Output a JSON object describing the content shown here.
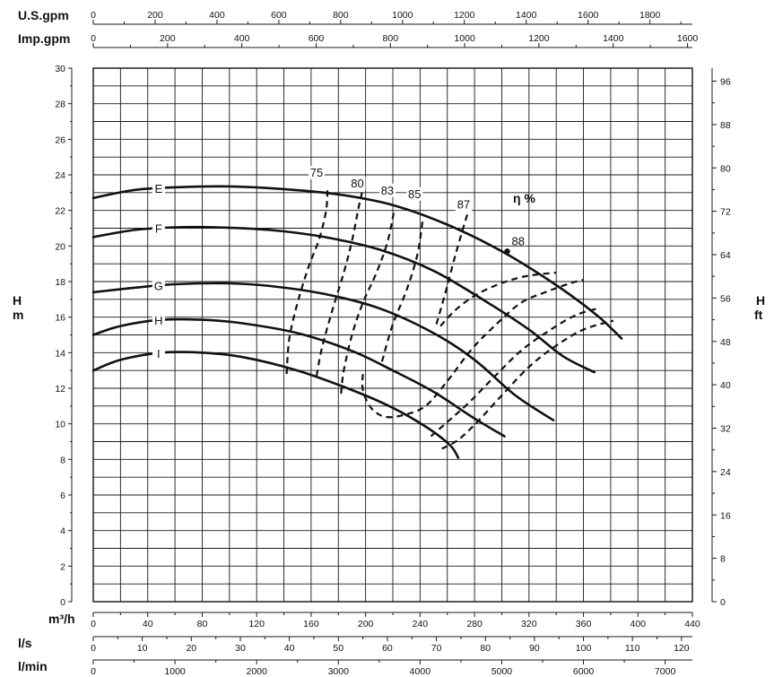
{
  "chart_data": {
    "type": "line",
    "title": "",
    "x_axes": [
      {
        "unit": "m³/h",
        "position": "bottom",
        "ticks": [
          "0",
          "40",
          "80",
          "120",
          "160",
          "200",
          "240",
          "280",
          "320",
          "360",
          "400",
          "440"
        ]
      },
      {
        "unit": "l/s",
        "position": "bottom",
        "ticks": [
          "0",
          "10",
          "20",
          "30",
          "40",
          "50",
          "60",
          "70",
          "80",
          "90",
          "100",
          "110",
          "120"
        ]
      },
      {
        "unit": "l/min",
        "position": "bottom",
        "ticks": [
          "0",
          "1000",
          "2000",
          "3000",
          "4000",
          "5000",
          "6000",
          "7000"
        ]
      },
      {
        "unit": "U.S.gpm",
        "position": "top",
        "ticks": [
          "0",
          "200",
          "400",
          "600",
          "800",
          "1000",
          "1200",
          "1400",
          "1600",
          "1800"
        ]
      },
      {
        "unit": "Imp.gpm",
        "position": "top",
        "ticks": [
          "0",
          "200",
          "400",
          "600",
          "800",
          "1000",
          "1200",
          "1400",
          "1600"
        ]
      }
    ],
    "y_axes": [
      {
        "label_line1": "H",
        "label_line2": "m",
        "position": "left",
        "ticks": [
          "0",
          "2",
          "4",
          "6",
          "8",
          "10",
          "12",
          "14",
          "16",
          "18",
          "20",
          "22",
          "24",
          "26",
          "28",
          "30"
        ]
      },
      {
        "label_line1": "H",
        "label_line2": "ft",
        "position": "right",
        "ticks": [
          "0",
          "8",
          "16",
          "24",
          "32",
          "40",
          "48",
          "56",
          "64",
          "72",
          "80",
          "88",
          "96"
        ]
      }
    ],
    "xlim": [
      0,
      440
    ],
    "ylim": [
      0,
      30
    ],
    "grid": true,
    "eta_label": "η %",
    "head_curves": [
      {
        "name": "E",
        "points": [
          [
            0,
            22.7
          ],
          [
            30,
            23.15
          ],
          [
            60,
            23.3
          ],
          [
            100,
            23.35
          ],
          [
            140,
            23.2
          ],
          [
            180,
            22.9
          ],
          [
            220,
            22.3
          ],
          [
            260,
            21.2
          ],
          [
            300,
            19.7
          ],
          [
            340,
            17.8
          ],
          [
            370,
            16.1
          ],
          [
            388,
            14.8
          ]
        ]
      },
      {
        "name": "F",
        "points": [
          [
            0,
            20.5
          ],
          [
            30,
            20.9
          ],
          [
            60,
            21.05
          ],
          [
            90,
            21.05
          ],
          [
            130,
            20.9
          ],
          [
            170,
            20.5
          ],
          [
            210,
            19.8
          ],
          [
            250,
            18.6
          ],
          [
            290,
            16.8
          ],
          [
            320,
            15.3
          ],
          [
            345,
            13.8
          ],
          [
            368,
            12.9
          ]
        ]
      },
      {
        "name": "G",
        "points": [
          [
            0,
            17.4
          ],
          [
            30,
            17.65
          ],
          [
            60,
            17.85
          ],
          [
            100,
            17.9
          ],
          [
            130,
            17.75
          ],
          [
            170,
            17.3
          ],
          [
            210,
            16.5
          ],
          [
            250,
            15.1
          ],
          [
            280,
            13.6
          ],
          [
            310,
            11.6
          ],
          [
            338,
            10.2
          ]
        ]
      },
      {
        "name": "H",
        "points": [
          [
            0,
            15.0
          ],
          [
            20,
            15.5
          ],
          [
            50,
            15.85
          ],
          [
            80,
            15.85
          ],
          [
            110,
            15.65
          ],
          [
            150,
            15.1
          ],
          [
            190,
            14.1
          ],
          [
            220,
            13.0
          ],
          [
            250,
            11.8
          ],
          [
            280,
            10.3
          ],
          [
            302,
            9.3
          ]
        ]
      },
      {
        "name": "I",
        "points": [
          [
            0,
            13.0
          ],
          [
            20,
            13.6
          ],
          [
            50,
            14.0
          ],
          [
            80,
            14.0
          ],
          [
            110,
            13.75
          ],
          [
            150,
            13.0
          ],
          [
            190,
            11.9
          ],
          [
            220,
            10.9
          ],
          [
            245,
            9.8
          ],
          [
            262,
            8.8
          ],
          [
            268,
            8.1
          ]
        ]
      }
    ],
    "efficiency_curves": [
      {
        "name": "75",
        "points": [
          [
            142,
            12.8
          ],
          [
            144,
            14.8
          ],
          [
            150,
            16.8
          ],
          [
            158,
            18.8
          ],
          [
            166,
            20.4
          ],
          [
            171,
            22.0
          ],
          [
            172,
            23.2
          ]
        ]
      },
      {
        "name": "80",
        "points": [
          [
            164,
            12.7
          ],
          [
            168,
            14.3
          ],
          [
            176,
            16.5
          ],
          [
            184,
            18.5
          ],
          [
            190,
            20.3
          ],
          [
            195,
            22.2
          ],
          [
            198,
            23.2
          ]
        ]
      },
      {
        "name": "83",
        "points": [
          [
            182,
            11.7
          ],
          [
            184,
            13.0
          ],
          [
            190,
            15.0
          ],
          [
            198,
            16.8
          ],
          [
            208,
            18.5
          ],
          [
            216,
            20.2
          ],
          [
            221,
            22.0
          ]
        ]
      },
      {
        "name": "85",
        "points": [
          [
            212,
            13.5
          ],
          [
            220,
            15.6
          ],
          [
            230,
            17.5
          ],
          [
            238,
            19.5
          ],
          [
            242,
            21.5
          ]
        ]
      },
      {
        "name": "87",
        "points": [
          [
            252,
            15.6
          ],
          [
            258,
            17.2
          ],
          [
            266,
            19.5
          ],
          [
            274,
            21.6
          ],
          [
            277,
            22.2
          ]
        ]
      },
      {
        "name": "83",
        "points": [
          [
            198,
            12.8
          ],
          [
            198,
            11.9
          ],
          [
            204,
            10.9
          ],
          [
            214,
            10.4
          ],
          [
            228,
            10.5
          ],
          [
            244,
            11.0
          ],
          [
            260,
            12.4
          ],
          [
            278,
            14.2
          ],
          [
            296,
            15.6
          ],
          [
            314,
            16.8
          ],
          [
            332,
            17.4
          ],
          [
            350,
            17.9
          ],
          [
            360,
            18.1
          ]
        ]
      },
      {
        "name": "85",
        "points": [
          [
            255,
            15.5
          ],
          [
            266,
            16.4
          ],
          [
            280,
            17.2
          ],
          [
            296,
            17.8
          ],
          [
            312,
            18.2
          ],
          [
            326,
            18.4
          ],
          [
            340,
            18.5
          ]
        ]
      },
      {
        "name": "80",
        "points": [
          [
            248,
            9.3
          ],
          [
            260,
            10.1
          ],
          [
            276,
            11.2
          ],
          [
            294,
            12.6
          ],
          [
            314,
            14.1
          ],
          [
            334,
            15.2
          ],
          [
            354,
            16.1
          ],
          [
            371,
            16.5
          ]
        ]
      },
      {
        "name": "75",
        "points": [
          [
            256,
            8.6
          ],
          [
            268,
            9.1
          ],
          [
            282,
            10.1
          ],
          [
            300,
            11.6
          ],
          [
            320,
            13.2
          ],
          [
            340,
            14.4
          ],
          [
            360,
            15.3
          ],
          [
            382,
            15.8
          ]
        ]
      }
    ],
    "efficiency_point": {
      "name": "88",
      "x": 304,
      "y": 19.7
    },
    "curve_labels": [
      "E",
      "F",
      "G",
      "H",
      "I"
    ],
    "efficiency_labels": [
      "75",
      "80",
      "83",
      "85",
      "87",
      "88"
    ]
  }
}
